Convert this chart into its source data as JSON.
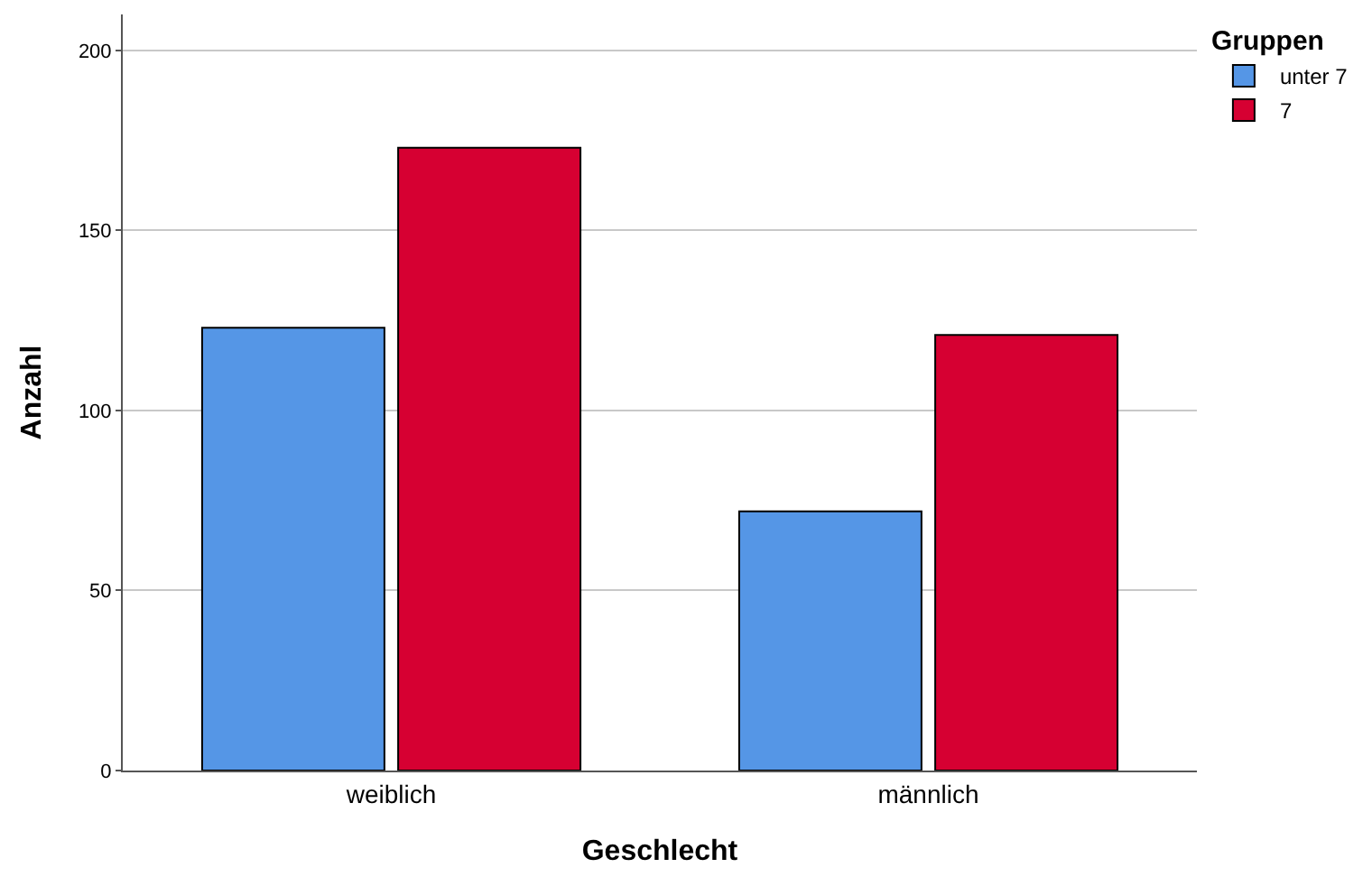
{
  "chart_data": {
    "type": "bar",
    "xlabel": "Geschlecht",
    "ylabel": "Anzahl",
    "legend_title": "Gruppen",
    "categories": [
      "weiblich",
      "männlich"
    ],
    "series": [
      {
        "name": "unter 7",
        "color": "#5596e6",
        "values": [
          123,
          72
        ]
      },
      {
        "name": "7",
        "color": "#d60032",
        "values": [
          173,
          121
        ]
      }
    ],
    "ylim": [
      0,
      210
    ],
    "yticks": [
      0,
      50,
      100,
      150,
      200
    ],
    "grid": "y",
    "legend": "top right"
  }
}
